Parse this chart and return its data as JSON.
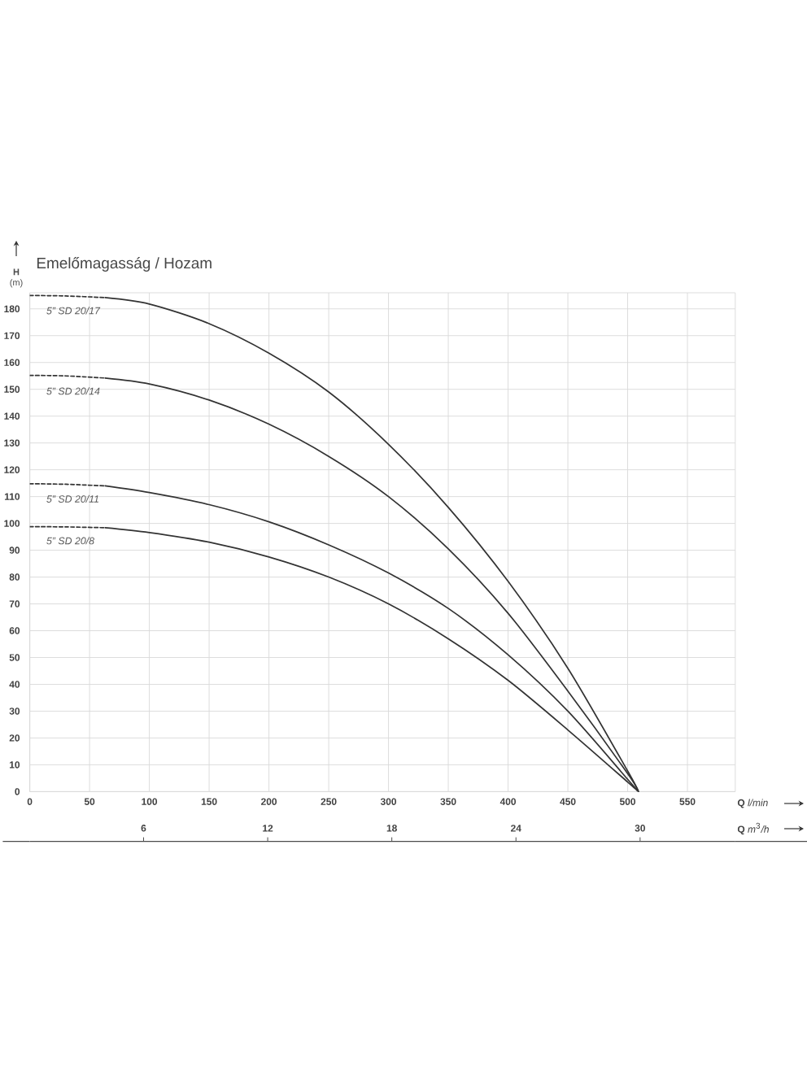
{
  "chart_data": {
    "type": "line",
    "title": "Emelőmagasság / Hozam",
    "xlabel": "**Q** *l/min*",
    "ylabel": "**H** (m)",
    "x2label": "**Q** *m*$^{3}$*/h*",
    "xlim": [
      0,
      590
    ],
    "ylim": [
      0,
      186
    ],
    "xticks": [
      0,
      50,
      100,
      150,
      200,
      250,
      300,
      350,
      400,
      450,
      500,
      550
    ],
    "yticks": [
      0,
      10,
      20,
      30,
      40,
      50,
      60,
      70,
      80,
      90,
      100,
      110,
      120,
      130,
      140,
      150,
      160,
      170,
      180
    ],
    "x2lim": [
      0.5,
      34.6
    ],
    "x2ticks": [
      6,
      12,
      18,
      24,
      30
    ],
    "grid": true,
    "marker": "none",
    "series": [
      {
        "color": "#333333",
        "line_style": "dashed",
        "x": [
          0,
          30,
          63
        ],
        "values": [
          185,
          184.8,
          184.2
        ]
      },
      {
        "name": "5” SD 20/17",
        "color": "#333333",
        "line_style": "solid",
        "x": [
          63,
          100,
          150,
          200,
          250,
          300,
          350,
          400,
          450,
          500,
          509
        ],
        "values": [
          184.2,
          181.8,
          174.5,
          163.5,
          149,
          129.5,
          106,
          78.4,
          46,
          7.7,
          0
        ]
      },
      {
        "color": "#333333",
        "line_style": "dashed",
        "x": [
          0,
          30,
          63
        ],
        "values": [
          155.2,
          155,
          154.2
        ]
      },
      {
        "name": "5” SD 20/14",
        "color": "#333333",
        "line_style": "solid",
        "x": [
          63,
          100,
          150,
          200,
          250,
          300,
          350,
          400,
          450,
          500,
          509
        ],
        "values": [
          154.2,
          152,
          146,
          137,
          125,
          110,
          90.5,
          66.5,
          37.5,
          6.7,
          0
        ]
      },
      {
        "color": "#333333",
        "line_style": "dashed",
        "x": [
          0,
          30,
          63
        ],
        "values": [
          114.8,
          114.6,
          114
        ]
      },
      {
        "name": "5” SD 20/11",
        "color": "#333333",
        "line_style": "solid",
        "x": [
          63,
          100,
          150,
          200,
          250,
          300,
          350,
          400,
          450,
          500,
          509
        ],
        "values": [
          114,
          111.5,
          107,
          100.6,
          92,
          81.5,
          68.3,
          51,
          30,
          4.6,
          0
        ]
      },
      {
        "color": "#333333",
        "line_style": "dashed",
        "x": [
          0,
          30,
          63
        ],
        "values": [
          98.8,
          98.7,
          98.4
        ]
      },
      {
        "name": "5” SD 20/8",
        "color": "#333333",
        "line_style": "solid",
        "x": [
          63,
          100,
          150,
          200,
          250,
          300,
          350,
          400,
          450,
          500,
          509
        ],
        "values": [
          98.4,
          96.6,
          93,
          87.5,
          80,
          70,
          57,
          41.5,
          23,
          3.6,
          0
        ]
      }
    ]
  }
}
